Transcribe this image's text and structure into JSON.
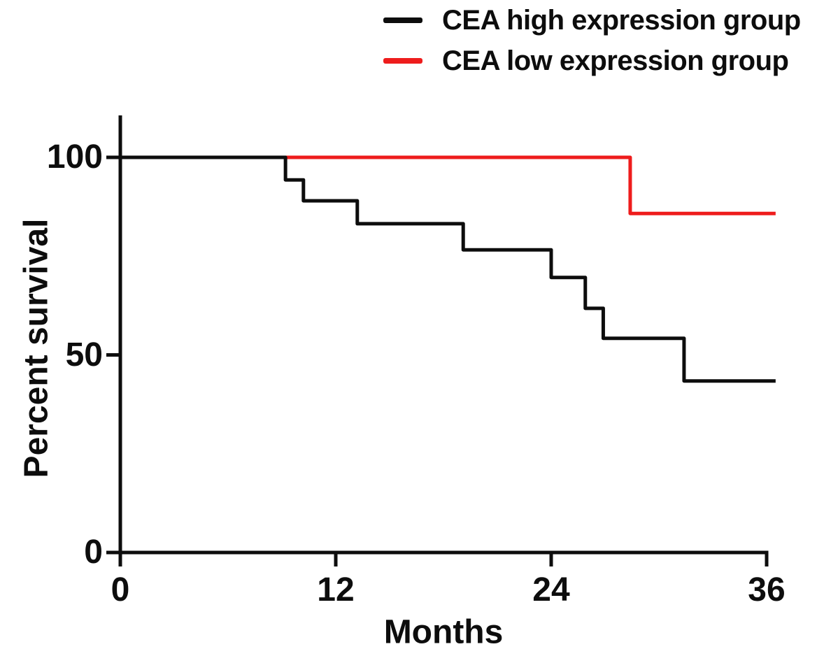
{
  "chart_data": {
    "type": "line",
    "subtype": "kaplan-meier-step-survival",
    "title": "",
    "xlabel": "Months",
    "ylabel": "Percent survival",
    "xlim": [
      0,
      36
    ],
    "ylim": [
      0,
      100
    ],
    "x_ticks": [
      0,
      12,
      24,
      36
    ],
    "y_ticks": [
      0,
      50,
      100
    ],
    "grid": false,
    "legend_position": "top-right",
    "curve_end_month": 36.5,
    "axis_color": "#0d0d0d",
    "series": [
      {
        "name": "CEA high expression group",
        "color": "#0d0d0d",
        "visible_start_month": 0,
        "steps": [
          {
            "month": 0.0,
            "percent": 100.0
          },
          {
            "month": 9.2,
            "percent": 94.3
          },
          {
            "month": 10.2,
            "percent": 89.0
          },
          {
            "month": 13.2,
            "percent": 83.2
          },
          {
            "month": 19.1,
            "percent": 76.6
          },
          {
            "month": 24.0,
            "percent": 69.6
          },
          {
            "month": 25.9,
            "percent": 61.8
          },
          {
            "month": 26.9,
            "percent": 54.2
          },
          {
            "month": 31.4,
            "percent": 43.4
          }
        ]
      },
      {
        "name": "CEA low expression group",
        "color": "#ee1c1c",
        "visible_start_month": 9.2,
        "steps": [
          {
            "month": 9.2,
            "percent": 100.0
          },
          {
            "month": 28.4,
            "percent": 85.8
          }
        ]
      }
    ]
  }
}
